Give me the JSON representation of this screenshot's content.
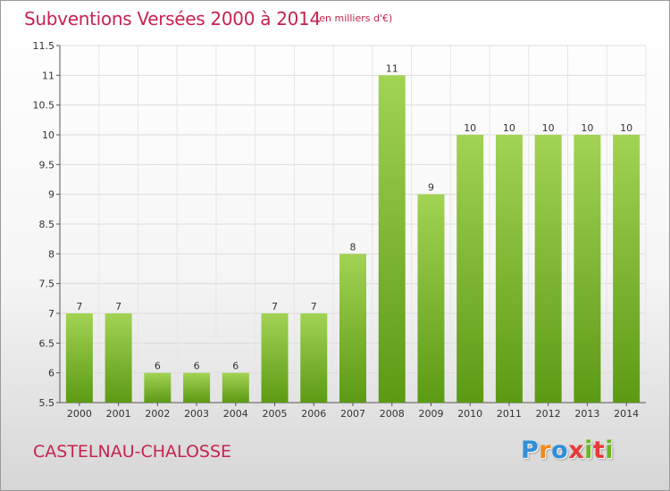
{
  "header": {
    "title": "Subventions Versées 2000 à 2014",
    "unit": "(en milliers d'€)"
  },
  "footer": {
    "commune": "CASTELNAU-CHALOSSE",
    "logo": [
      "P",
      "r",
      "o",
      "x",
      "i",
      "t",
      "i"
    ]
  },
  "colors": {
    "accent": "#c8234f",
    "bar_top": "#a2d354",
    "bar_bottom": "#5c9a14",
    "logo_letters": [
      "#2e8fd8",
      "#f28a1c",
      "#2e8fd8",
      "#e83a3a",
      "#6cb520",
      "#e83a3a",
      "#6cb520"
    ]
  },
  "chart_data": {
    "type": "bar",
    "categories": [
      "2000",
      "2001",
      "2002",
      "2003",
      "2004",
      "2005",
      "2006",
      "2007",
      "2008",
      "2009",
      "2010",
      "2011",
      "2012",
      "2013",
      "2014"
    ],
    "values": [
      7,
      7,
      6,
      6,
      6,
      7,
      7,
      8,
      11,
      9,
      10,
      10,
      10,
      10,
      10
    ],
    "ylim": [
      5.5,
      11.5
    ],
    "yticks": [
      "5.5",
      "6",
      "6.5",
      "7",
      "7.5",
      "8",
      "8.5",
      "9",
      "9.5",
      "10",
      "10.5",
      "11",
      "11.5"
    ],
    "grid": true
  }
}
